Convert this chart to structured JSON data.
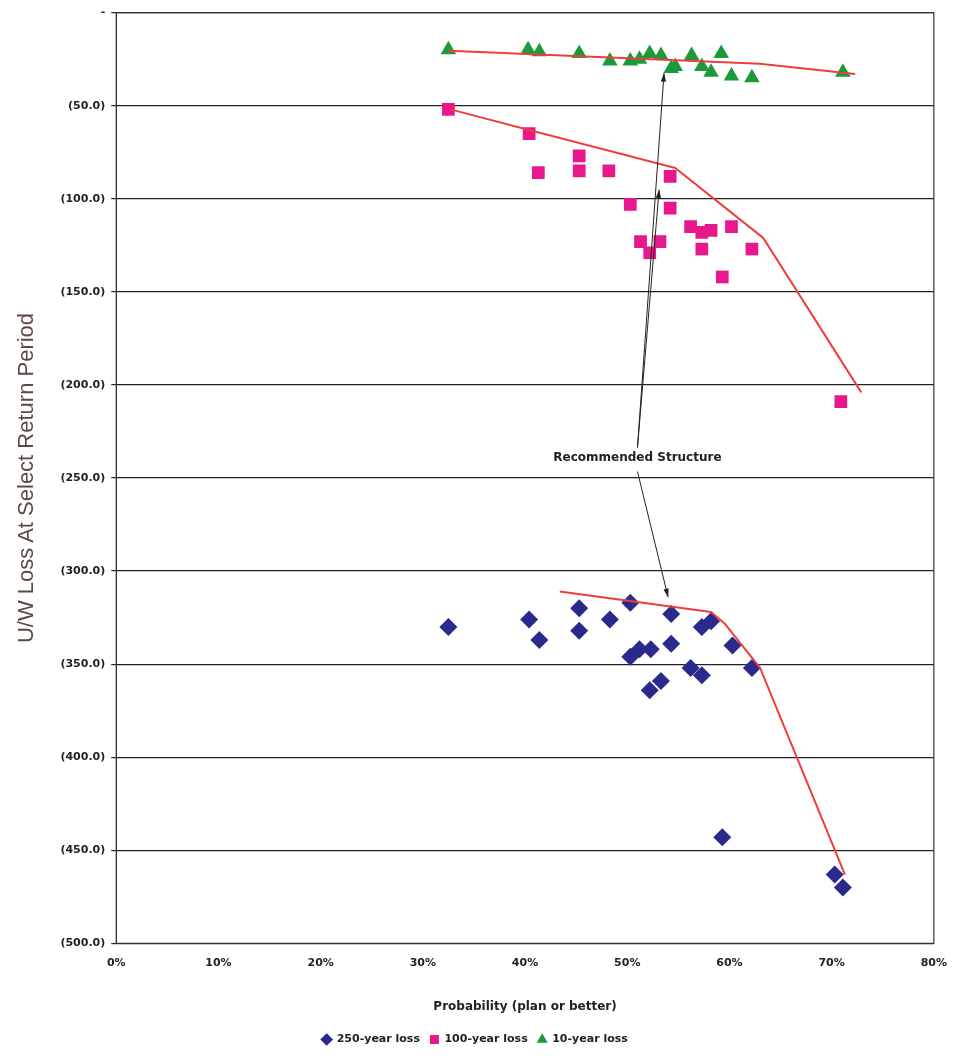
{
  "chart_data": {
    "type": "scatter",
    "xlabel": "Probability (plan or better)",
    "ylabel": "U/W Loss At Select Return Period",
    "xlim": [
      0,
      80
    ],
    "xticks": [
      {
        "value": 0,
        "label": "0%"
      },
      {
        "value": 10,
        "label": "10%"
      },
      {
        "value": 20,
        "label": "20%"
      },
      {
        "value": 30,
        "label": "30%"
      },
      {
        "value": 40,
        "label": "40%"
      },
      {
        "value": 50,
        "label": "50%"
      },
      {
        "value": 60,
        "label": "60%"
      },
      {
        "value": 70,
        "label": "70%"
      },
      {
        "value": 80,
        "label": "80%"
      }
    ],
    "ylim": [
      -500,
      0
    ],
    "yticks": [
      {
        "value": -500,
        "label": "(500.0)"
      },
      {
        "value": -450,
        "label": "(450.0)"
      },
      {
        "value": -400,
        "label": "(400.0)"
      },
      {
        "value": -350,
        "label": "(350.0)"
      },
      {
        "value": -300,
        "label": "(300.0)"
      },
      {
        "value": -250,
        "label": "(250.0)"
      },
      {
        "value": -200,
        "label": "(200.0)"
      },
      {
        "value": -150,
        "label": "(150.0)"
      },
      {
        "value": -100,
        "label": "(100.0)"
      },
      {
        "value": -50,
        "label": "(50.0)"
      },
      {
        "value": 0,
        "label": "-"
      }
    ],
    "grid": "y",
    "legend": "bottom",
    "annotations": [
      "Recommended Structure"
    ],
    "series": [
      {
        "name": "250-year loss",
        "marker": "diamond",
        "color": "#2a2a8c",
        "x": [
          32.5,
          40.4,
          41.4,
          45.3,
          45.3,
          48.3,
          50.3,
          50.3,
          51.2,
          52.3,
          54.3,
          54.3,
          52.2,
          53.3,
          56.2,
          57.3,
          57.3,
          58.2,
          60.3,
          62.2,
          59.3,
          70.3,
          71.1
        ],
        "values": [
          -330,
          -326,
          -337,
          -320,
          -332,
          -326,
          -317,
          -346,
          -342,
          -342,
          -323,
          -339,
          -364,
          -359,
          -352,
          -356,
          -330,
          -327,
          -340,
          -352,
          -443,
          -463,
          -470
        ]
      },
      {
        "name": "100-year loss",
        "marker": "square",
        "color": "#e8188c",
        "x": [
          32.5,
          40.4,
          41.3,
          45.3,
          45.3,
          48.2,
          50.3,
          54.2,
          54.2,
          51.3,
          53.2,
          52.2,
          56.2,
          57.3,
          57.3,
          58.2,
          60.2,
          59.3,
          62.2,
          70.9
        ],
        "values": [
          -52,
          -65,
          -86,
          -77,
          -85,
          -85,
          -103,
          -88,
          -105,
          -123,
          -123,
          -129,
          -115,
          -118,
          -127,
          -117,
          -115,
          -142,
          -127,
          -209
        ]
      },
      {
        "name": "10-year loss",
        "marker": "triangle",
        "color": "#1a9a3a",
        "x": [
          32.5,
          40.3,
          41.4,
          45.3,
          48.3,
          50.3,
          51.2,
          52.2,
          53.3,
          54.3,
          54.7,
          56.3,
          57.3,
          58.2,
          59.2,
          60.2,
          62.2,
          71.1
        ],
        "values": [
          -20,
          -20,
          -21,
          -22,
          -26,
          -26,
          -25,
          -22,
          -23,
          -30,
          -29,
          -23,
          -29,
          -32,
          -22,
          -34,
          -35,
          -32
        ]
      },
      {
        "type": "line",
        "marker": "none",
        "color": "#f03c3c",
        "x": [
          43.4,
          58.2,
          59.5,
          63,
          71.3
        ],
        "values": [
          -311,
          -322,
          -328,
          -352,
          -463
        ]
      },
      {
        "type": "line",
        "marker": "none",
        "color": "#f03c3c",
        "x": [
          32.7,
          54.7,
          63.3,
          72.9
        ],
        "values": [
          -52,
          -83.5,
          -121,
          -204
        ]
      },
      {
        "type": "line",
        "marker": "none",
        "color": "#f03c3c",
        "x": [
          32.5,
          63,
          72.3
        ],
        "values": [
          -20.5,
          -27.5,
          -33
        ]
      }
    ]
  }
}
